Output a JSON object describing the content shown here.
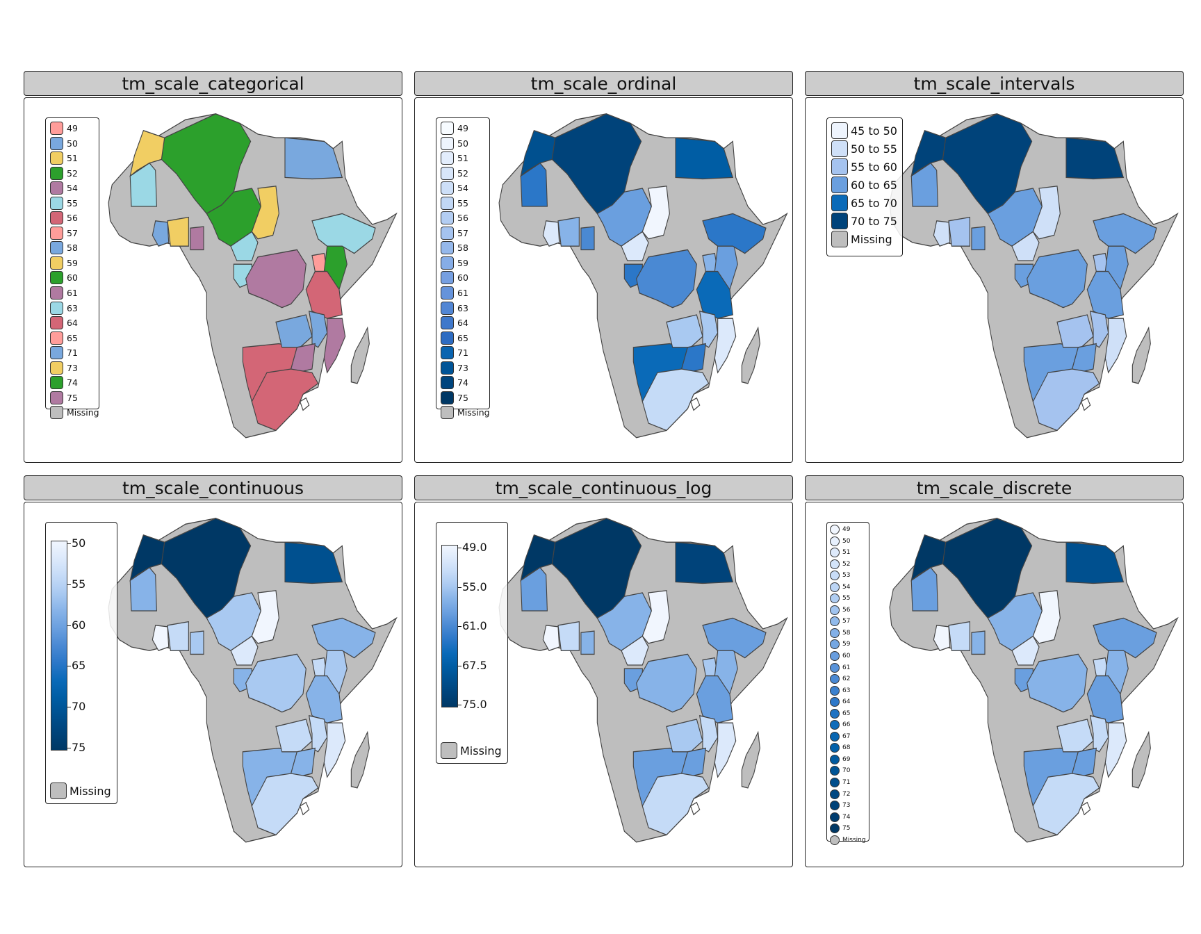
{
  "map_colors": {
    "missing": "#bebebe",
    "border": "#444444",
    "categorical_palette": [
      "#ff9d9a",
      "#79a8de",
      "#f1ce63",
      "#2ca02c",
      "#b07aa1",
      "#9bd8e5",
      "#d36676"
    ],
    "blues": [
      "#f1f6fe",
      "#dce9fb",
      "#c5dbf7",
      "#a9c9f1",
      "#87b3e8",
      "#6a9fdf",
      "#4a89d3",
      "#2b77c8",
      "#0a6ab8",
      "#005da4",
      "#00508f",
      "#00437a",
      "#003865"
    ]
  },
  "panels": [
    {
      "id": "categorical",
      "title": "tm_scale_categorical",
      "legend": {
        "type": "categorical",
        "labels": [
          "49",
          "50",
          "51",
          "52",
          "54",
          "55",
          "56",
          "57",
          "58",
          "59",
          "60",
          "61",
          "63",
          "64",
          "65",
          "71",
          "73",
          "74",
          "75",
          "Missing"
        ],
        "colors": [
          "#ff9d9a",
          "#79a8de",
          "#f1ce63",
          "#2ca02c",
          "#b07aa1",
          "#9bd8e5",
          "#d36676",
          "#ff9d9a",
          "#79a8de",
          "#f1ce63",
          "#2ca02c",
          "#b07aa1",
          "#9bd8e5",
          "#d36676",
          "#ff9d9a",
          "#79a8de",
          "#f1ce63",
          "#2ca02c",
          "#b07aa1",
          "#bebebe"
        ]
      }
    },
    {
      "id": "ordinal",
      "title": "tm_scale_ordinal",
      "legend": {
        "type": "ordinal",
        "labels": [
          "49",
          "50",
          "51",
          "52",
          "54",
          "55",
          "56",
          "57",
          "58",
          "59",
          "60",
          "61",
          "63",
          "64",
          "65",
          "71",
          "73",
          "74",
          "75",
          "Missing"
        ],
        "colors": [
          "#f7fbff",
          "#eef4fd",
          "#e3edfc",
          "#d8e6fa",
          "#cddff8",
          "#c1d7f5",
          "#b3cdf2",
          "#a5c3ef",
          "#95b8eb",
          "#86ade7",
          "#769fe1",
          "#6593db",
          "#5286d4",
          "#3f78cb",
          "#2e6cc2",
          "#0a64b0",
          "#005497",
          "#00457e",
          "#003865",
          "#bebebe"
        ]
      }
    },
    {
      "id": "intervals",
      "title": "tm_scale_intervals",
      "legend": {
        "type": "intervals",
        "labels": [
          "45 to 50",
          "50 to 55",
          "55 to 60",
          "60 to 65",
          "65 to 70",
          "70 to 75",
          "Missing"
        ],
        "colors": [
          "#eef4fd",
          "#cfe0f8",
          "#a5c3ef",
          "#6a9fdf",
          "#0a6ab8",
          "#00437a",
          "#bebebe"
        ]
      }
    },
    {
      "id": "continuous",
      "title": "tm_scale_continuous",
      "legend": {
        "type": "continuous",
        "ticks": [
          "50",
          "55",
          "60",
          "65",
          "70",
          "75"
        ],
        "missing_label": "Missing"
      }
    },
    {
      "id": "continuous_log",
      "title": "tm_scale_continuous_log",
      "legend": {
        "type": "continuous",
        "ticks": [
          "49.0",
          "55.0",
          "61.0",
          "67.5",
          "75.0"
        ],
        "missing_label": "Missing"
      }
    },
    {
      "id": "discrete",
      "title": "tm_scale_discrete",
      "legend": {
        "type": "discrete",
        "labels": [
          "49",
          "50",
          "51",
          "52",
          "53",
          "54",
          "55",
          "56",
          "57",
          "58",
          "59",
          "60",
          "61",
          "62",
          "63",
          "64",
          "65",
          "66",
          "67",
          "68",
          "69",
          "70",
          "71",
          "72",
          "73",
          "74",
          "75",
          "Missing"
        ]
      }
    }
  ]
}
